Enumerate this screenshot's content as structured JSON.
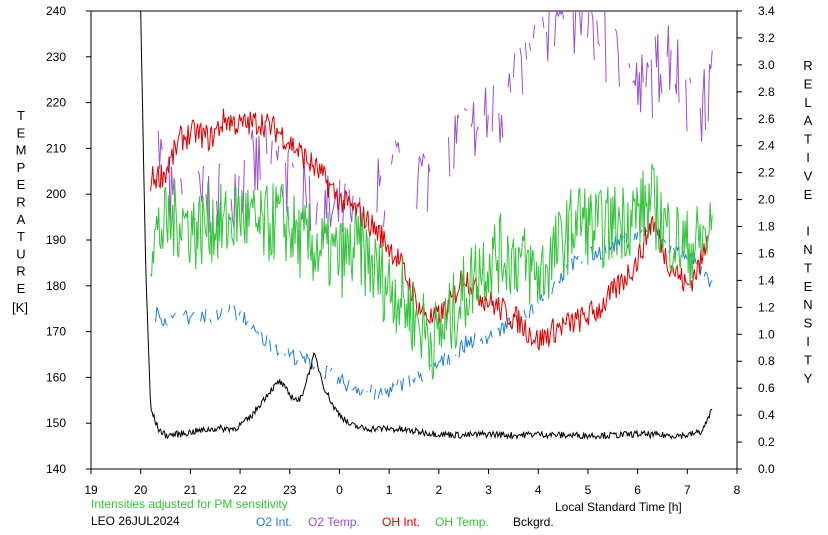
{
  "chart_data": {
    "type": "line",
    "title": "",
    "xlabel": "Local Standard Time [h]",
    "ylabel_left": "TEMPERATURE [K]",
    "ylabel_right": "RELATIVE INTENSITY",
    "xlim": [
      19,
      8
    ],
    "xticks": [
      "19",
      "20",
      "21",
      "22",
      "23",
      "0",
      "1",
      "2",
      "3",
      "4",
      "5",
      "6",
      "7",
      "8"
    ],
    "ylim_left": [
      140,
      240
    ],
    "yticks_left": [
      "140",
      "150",
      "160",
      "170",
      "180",
      "190",
      "200",
      "210",
      "220",
      "230",
      "240"
    ],
    "ylim_right": [
      0.0,
      3.4
    ],
    "yticks_right": [
      "0.0",
      "0.2",
      "0.4",
      "0.6",
      "0.8",
      "1.0",
      "1.2",
      "1.4",
      "1.6",
      "1.8",
      "2.0",
      "2.2",
      "2.4",
      "2.6",
      "2.8",
      "3.0",
      "3.2",
      "3.4"
    ],
    "note": "Intensities adjusted for PM sensitivity",
    "station": "LEO 26JUL2024",
    "legend": [
      {
        "label": "O2 Int.",
        "color": "#1f7fd8"
      },
      {
        "label": "O2 Temp.",
        "color": "#9a4fd0"
      },
      {
        "label": "OH Int.",
        "color": "#dd0000"
      },
      {
        "label": "OH Temp.",
        "color": "#33c43a"
      },
      {
        "label": "Bckgrd.",
        "color": "#000000"
      }
    ],
    "series": [
      {
        "name": "O2 Temp.",
        "axis": "left",
        "color": "#9a4fd0",
        "x": [
          20.3,
          20.7,
          21.2,
          21.7,
          22.2,
          22.7,
          23.2,
          23.7,
          0.0,
          0.4,
          0.8,
          1.2,
          1.6,
          2.0,
          2.4,
          2.8,
          3.2,
          3.6,
          4.0,
          4.3,
          4.6,
          5.0,
          5.3,
          5.6,
          6.0,
          6.3,
          6.6,
          7.0,
          7.3,
          7.5
        ],
        "y": [
          212,
          195,
          198,
          200,
          205,
          207,
          200,
          196,
          195,
          192,
          200,
          205,
          204,
          204,
          212,
          214,
          218,
          225,
          232,
          240,
          240,
          238,
          232,
          228,
          222,
          225,
          232,
          222,
          218,
          225
        ]
      },
      {
        "name": "O2 Int.",
        "axis": "right",
        "color": "#1f7fd8",
        "x": [
          20.3,
          20.6,
          20.9,
          21.2,
          21.5,
          21.8,
          22.1,
          22.3,
          23.0,
          23.5,
          0.0,
          0.4,
          0.8,
          1.2,
          1.6,
          2.0,
          2.3,
          2.6,
          3.0,
          3.3,
          3.7,
          4.0,
          4.3,
          4.6,
          5.0,
          5.3,
          5.6,
          6.0,
          6.3,
          6.6,
          7.0,
          7.3,
          7.5
        ],
        "y": [
          1.15,
          1.1,
          1.12,
          1.15,
          1.13,
          1.18,
          1.12,
          1.0,
          0.85,
          0.78,
          0.65,
          0.6,
          0.55,
          0.62,
          0.68,
          0.78,
          0.85,
          0.95,
          0.98,
          1.05,
          1.12,
          1.25,
          1.35,
          1.5,
          1.58,
          1.62,
          1.68,
          1.72,
          1.8,
          1.65,
          1.6,
          1.45,
          1.35
        ]
      },
      {
        "name": "OH Int.",
        "axis": "right",
        "color": "#dd0000",
        "x": [
          20.2,
          20.5,
          20.8,
          21.1,
          21.4,
          21.7,
          22.0,
          22.4,
          22.8,
          23.2,
          23.6,
          0.0,
          0.4,
          0.8,
          1.2,
          1.6,
          1.9,
          2.2,
          2.5,
          2.8,
          3.2,
          3.6,
          4.0,
          4.4,
          4.8,
          5.2,
          5.6,
          6.0,
          6.3,
          6.6,
          7.0,
          7.3,
          7.4
        ],
        "y": [
          2.15,
          2.2,
          2.45,
          2.5,
          2.45,
          2.6,
          2.55,
          2.58,
          2.5,
          2.35,
          2.2,
          2.0,
          1.9,
          1.75,
          1.55,
          1.2,
          1.1,
          1.2,
          1.45,
          1.3,
          1.2,
          1.1,
          0.95,
          1.05,
          1.1,
          1.18,
          1.35,
          1.55,
          1.85,
          1.55,
          1.35,
          1.55,
          1.75
        ]
      },
      {
        "name": "OH Temp.",
        "axis": "left",
        "color": "#33c43a",
        "x": [
          20.2,
          20.5,
          20.8,
          21.1,
          21.4,
          21.7,
          22.0,
          22.4,
          22.8,
          23.2,
          23.6,
          0.0,
          0.4,
          0.8,
          1.2,
          1.6,
          1.9,
          2.2,
          2.5,
          2.8,
          3.2,
          3.6,
          4.0,
          4.4,
          4.8,
          5.2,
          5.6,
          6.0,
          6.3,
          6.6,
          7.0,
          7.3,
          7.5
        ],
        "y": [
          190,
          193,
          195,
          192,
          194,
          193,
          196,
          192,
          195,
          190,
          188,
          186,
          188,
          182,
          178,
          172,
          168,
          172,
          178,
          184,
          187,
          186,
          182,
          188,
          195,
          192,
          194,
          196,
          198,
          192,
          188,
          190,
          192
        ]
      },
      {
        "name": "Bckgrd.",
        "axis": "right",
        "color": "#000000",
        "x": [
          20.0,
          20.1,
          20.2,
          20.35,
          20.5,
          20.8,
          21.1,
          21.5,
          21.9,
          22.2,
          22.4,
          22.6,
          22.8,
          23.0,
          23.2,
          23.5,
          23.7,
          23.9,
          0.2,
          0.5,
          1.0,
          1.5,
          2.0,
          2.5,
          3.0,
          3.5,
          4.0,
          4.5,
          5.0,
          5.5,
          6.0,
          6.5,
          7.0,
          7.3,
          7.5
        ],
        "y": [
          3.4,
          1.5,
          0.45,
          0.3,
          0.25,
          0.26,
          0.28,
          0.3,
          0.3,
          0.38,
          0.48,
          0.58,
          0.65,
          0.55,
          0.5,
          0.85,
          0.6,
          0.45,
          0.33,
          0.3,
          0.3,
          0.28,
          0.26,
          0.25,
          0.26,
          0.25,
          0.26,
          0.25,
          0.25,
          0.25,
          0.26,
          0.25,
          0.25,
          0.28,
          0.44
        ]
      }
    ]
  }
}
